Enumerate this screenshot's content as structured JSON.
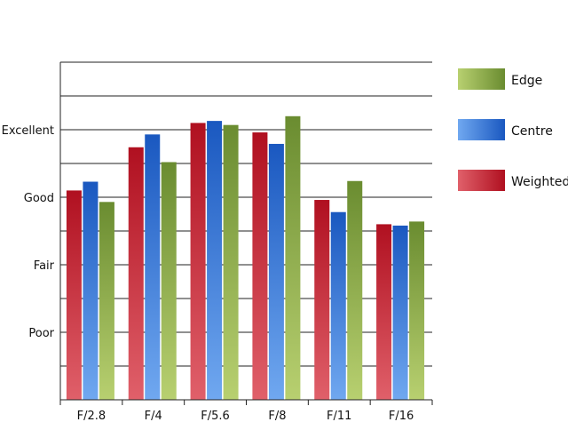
{
  "chart_data": {
    "type": "bar",
    "categories": [
      "F/2.8",
      "F/4",
      "F/5.6",
      "F/8",
      "F/11",
      "F/16"
    ],
    "y_ticks": [
      {
        "value": 1,
        "label": "Poor"
      },
      {
        "value": 2,
        "label": "Fair"
      },
      {
        "value": 3,
        "label": "Good"
      },
      {
        "value": 4,
        "label": "Excellent"
      }
    ],
    "ylim": [
      0,
      5
    ],
    "grid": true,
    "legend_position": "right",
    "series": [
      {
        "name": "Weighted",
        "values": [
          3.1,
          3.74,
          4.1,
          3.96,
          2.96,
          2.6
        ],
        "color_light": "#e0606a",
        "color_dark": "#b01020"
      },
      {
        "name": "Centre",
        "values": [
          3.23,
          3.93,
          4.13,
          3.79,
          2.78,
          2.58
        ],
        "color_light": "#70a8f0",
        "color_dark": "#1a58c0"
      },
      {
        "name": "Edge",
        "values": [
          2.93,
          3.52,
          4.07,
          4.2,
          3.24,
          2.64
        ],
        "color_light": "#b8d070",
        "color_dark": "#6a8c30"
      }
    ],
    "legend_order": [
      "Edge",
      "Centre",
      "Weighted"
    ]
  }
}
